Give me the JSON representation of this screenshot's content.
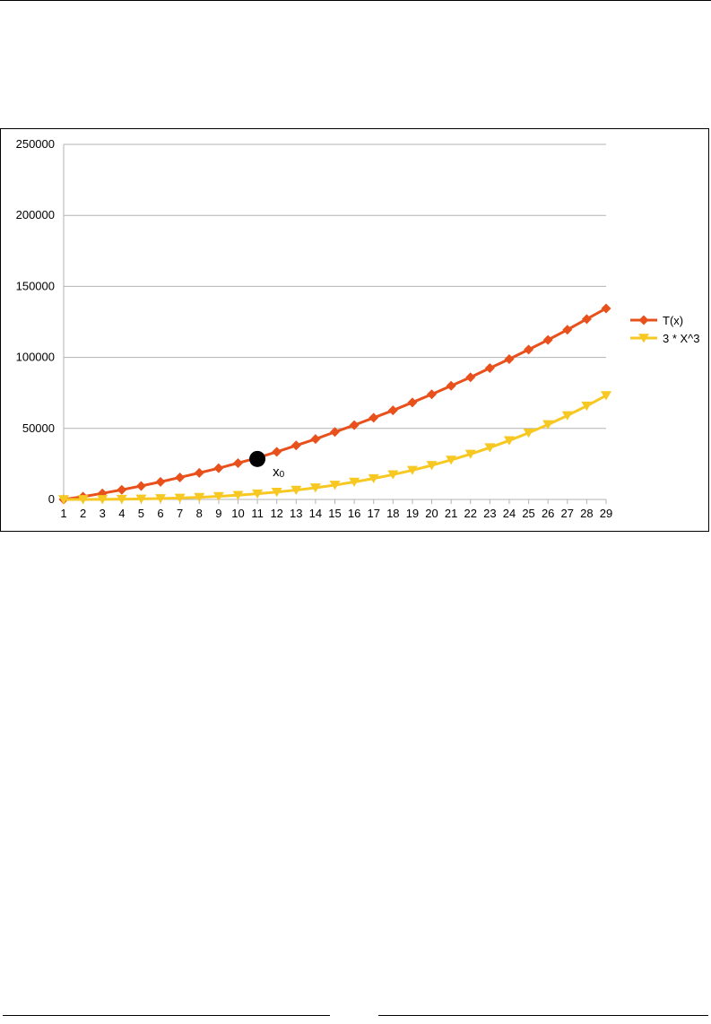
{
  "chart_data": {
    "type": "line",
    "title": "",
    "xlabel": "",
    "ylabel": "",
    "categories": [
      1,
      2,
      3,
      4,
      5,
      6,
      7,
      8,
      9,
      10,
      11,
      12,
      13,
      14,
      15,
      16,
      17,
      18,
      19,
      20,
      21,
      22,
      23,
      24,
      25,
      26,
      27,
      28,
      29
    ],
    "ylim": [
      0,
      250000
    ],
    "yticks": [
      0,
      50000,
      100000,
      150000,
      200000,
      250000
    ],
    "grid": true,
    "legend_position": "right",
    "series": [
      {
        "name": "T(x)",
        "color": "#E8501C",
        "marker": "diamond",
        "values": [
          0,
          2000,
          4300,
          6800,
          9500,
          12400,
          15500,
          18700,
          22000,
          25600,
          29300,
          33500,
          38000,
          42500,
          47500,
          52300,
          57500,
          62700,
          68300,
          74000,
          80000,
          86000,
          92500,
          98800,
          105500,
          112300,
          119500,
          127000,
          134500
        ]
      },
      {
        "name": "3 * X^3",
        "color": "#F7C821",
        "marker": "triangle-down",
        "values": [
          3,
          24,
          81,
          192,
          375,
          648,
          1029,
          1536,
          2187,
          3000,
          3993,
          5184,
          6591,
          8232,
          10125,
          12288,
          14739,
          17496,
          20577,
          24000,
          27783,
          31944,
          36501,
          41472,
          46875,
          52728,
          59049,
          65856,
          73167
        ]
      }
    ],
    "annotation": {
      "label": "x",
      "subscript": "0",
      "x": 11,
      "y": 28500
    }
  }
}
